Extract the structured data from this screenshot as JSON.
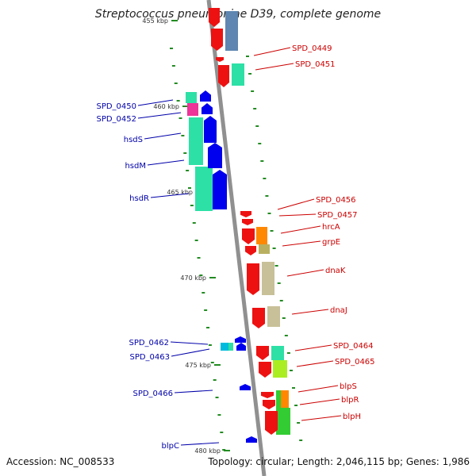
{
  "title": "Streptococcus pneumoniae D39, complete genome",
  "accession_text": "Accession: NC_008533",
  "topology_text": "Topology: circular; Length: 2,046,115 bp; Genes: 1,986",
  "colors": {
    "backbone": "#909090",
    "forward_label": "#cc0000",
    "reverse_label": "#0000aa",
    "tick": "#228b22"
  },
  "chart_data": {
    "type": "linear_genome_map",
    "ticks": [
      {
        "label": "455 kbp",
        "kbp": 455
      },
      {
        "label": "460 kbp",
        "kbp": 460
      },
      {
        "label": "465 kbp",
        "kbp": 465
      },
      {
        "label": "470 kbp",
        "kbp": 470
      },
      {
        "label": "475 kbp",
        "kbp": 475
      },
      {
        "label": "480 kbp",
        "kbp": 480
      }
    ],
    "forward_genes": [
      {
        "name": "SPD_0449"
      },
      {
        "name": "SPD_0451"
      },
      {
        "name": "SPD_0456"
      },
      {
        "name": "SPD_0457"
      },
      {
        "name": "hrcA"
      },
      {
        "name": "grpE"
      },
      {
        "name": "dnaK"
      },
      {
        "name": "dnaJ"
      },
      {
        "name": "SPD_0464"
      },
      {
        "name": "SPD_0465"
      },
      {
        "name": "blpS"
      },
      {
        "name": "blpR"
      },
      {
        "name": "blpH"
      }
    ],
    "reverse_genes": [
      {
        "name": "SPD_0450"
      },
      {
        "name": "SPD_0452"
      },
      {
        "name": "hsdS"
      },
      {
        "name": "hsdM"
      },
      {
        "name": "hsdR"
      },
      {
        "name": "SPD_0462"
      },
      {
        "name": "SPD_0463"
      },
      {
        "name": "SPD_0466"
      },
      {
        "name": "blpC"
      }
    ]
  }
}
